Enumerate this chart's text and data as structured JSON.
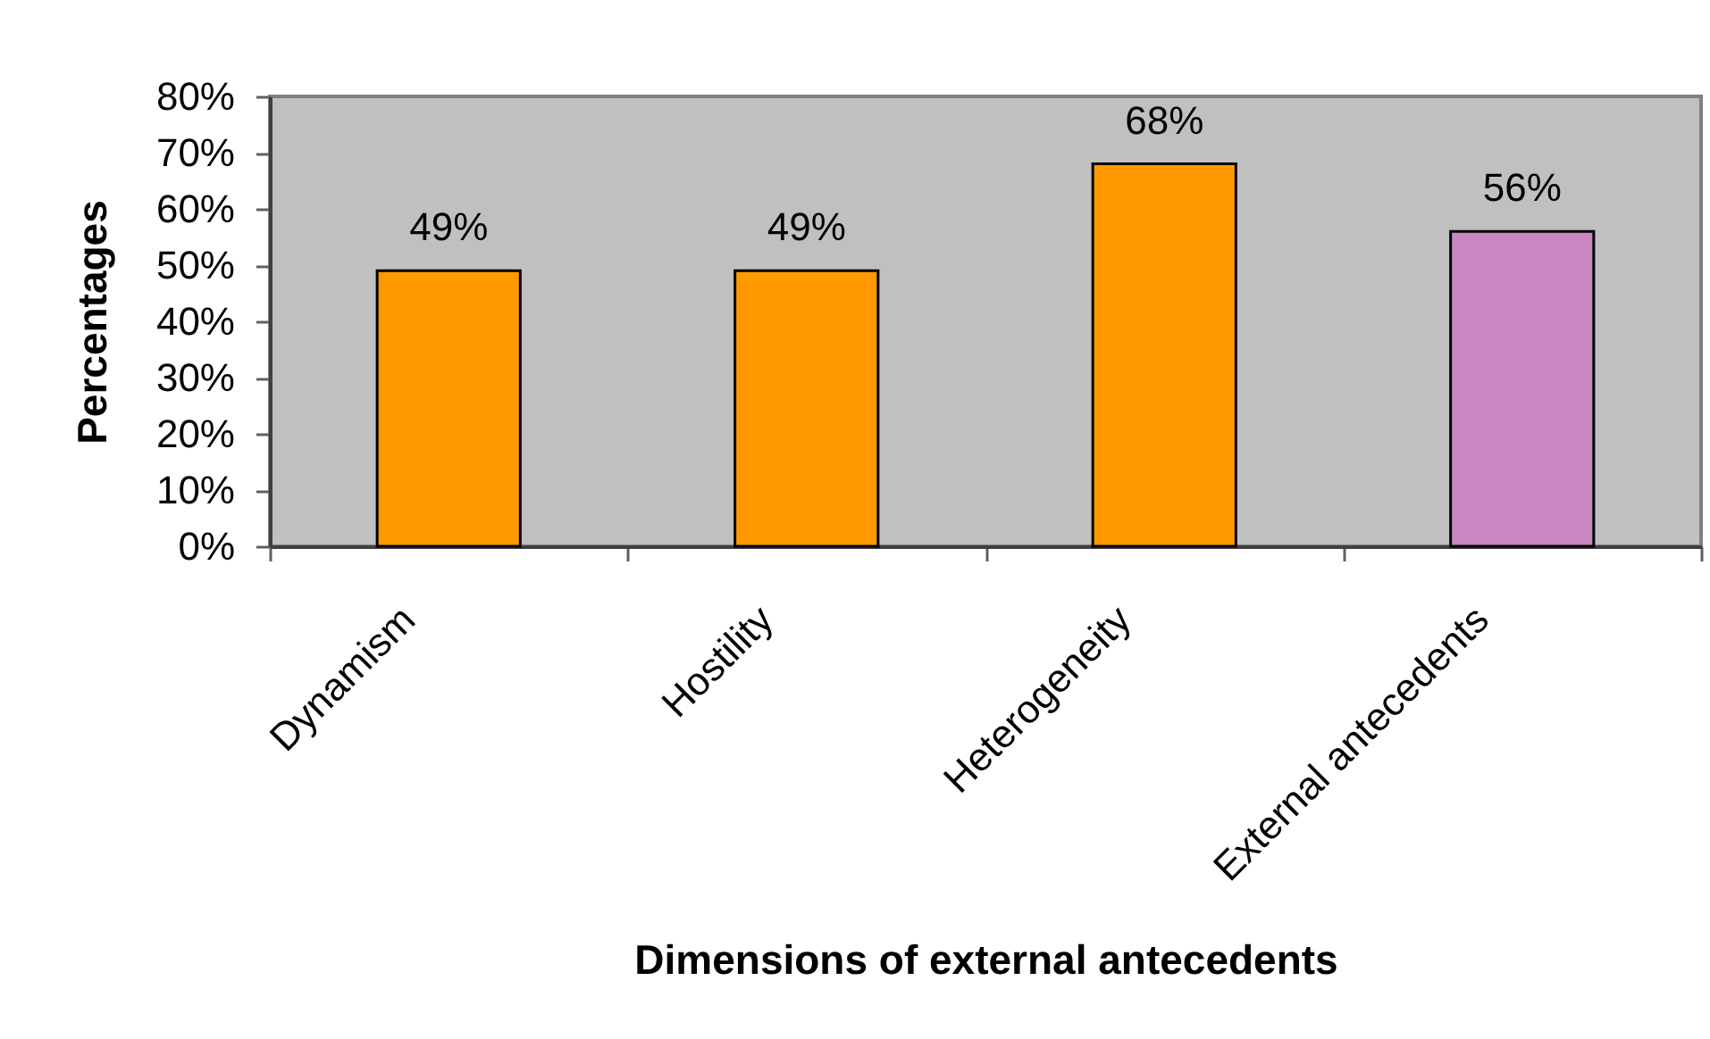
{
  "chart_data": {
    "type": "bar",
    "xlabel": "Dimensions of external antecedents",
    "ylabel": "Percentages",
    "categories": [
      "Dynamism",
      "Hostility",
      "Heterogeneity",
      "External antecedents"
    ],
    "values": [
      49,
      49,
      68,
      56
    ],
    "colors": [
      "#ff9900",
      "#ff9900",
      "#ff9900",
      "#c987c2"
    ],
    "value_labels": [
      "49%",
      "49%",
      "68%",
      "56%"
    ],
    "ylim": [
      0,
      80
    ],
    "yticks": [
      {
        "value": 0,
        "label": "0%"
      },
      {
        "value": 10,
        "label": "10%"
      },
      {
        "value": 20,
        "label": "20%"
      },
      {
        "value": 30,
        "label": "30%"
      },
      {
        "value": 40,
        "label": "40%"
      },
      {
        "value": 50,
        "label": "50%"
      },
      {
        "value": 60,
        "label": "60%"
      },
      {
        "value": 70,
        "label": "70%"
      },
      {
        "value": 80,
        "label": "80%"
      }
    ]
  }
}
